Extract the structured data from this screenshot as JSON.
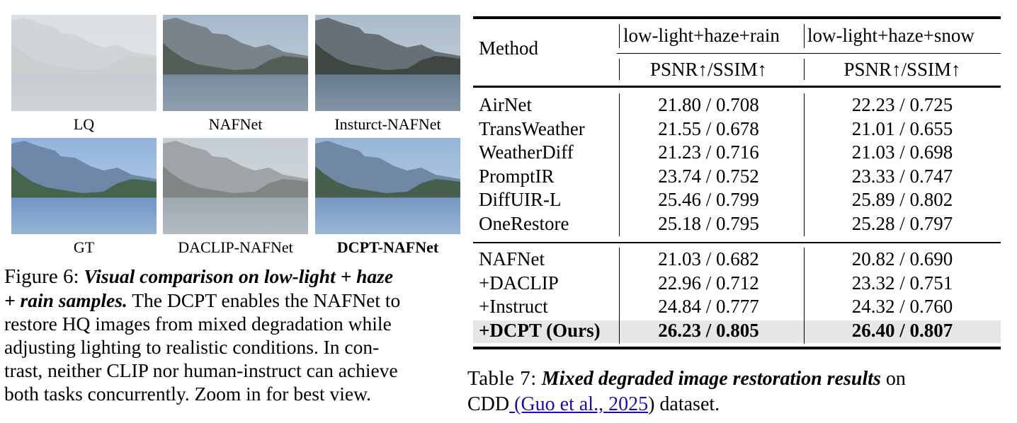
{
  "figure": {
    "thumbnails": [
      {
        "caption": "LQ",
        "variant": "lq"
      },
      {
        "caption": "NAFNet",
        "variant": "naf"
      },
      {
        "caption": "Insturct-NAFNet",
        "variant": "ins"
      },
      {
        "caption": "GT",
        "variant": "gt"
      },
      {
        "caption": "DACLIP-NAFNet",
        "variant": "dac"
      },
      {
        "caption": "DCPT-NAFNet",
        "variant": "dcpt"
      }
    ],
    "caption": {
      "label": "Figure 6:",
      "emph_1": "Visual comparison on low-light + haze",
      "emph_2": "+ rain samples.",
      "rest_2": " The DCPT enables the NAFNet to",
      "line_3": "restore HQ images from mixed degradation while",
      "line_4": "adjusting lighting to realistic conditions.  In con-",
      "line_5": "trast, neither CLIP nor human-instruct can achieve",
      "line_6": "both tasks concurrently. Zoom in for best view."
    }
  },
  "table": {
    "header": {
      "method": "Method",
      "group_1": "low-light+haze+rain",
      "group_2": "low-light+haze+snow",
      "metric_1": "PSNR↑/SSIM↑",
      "metric_2": "PSNR↑/SSIM↑"
    },
    "rows_block_1": [
      {
        "method": "AirNet",
        "v1": "21.80 / 0.708",
        "v2": "22.23 / 0.725"
      },
      {
        "method": "TransWeather",
        "v1": "21.55 / 0.678",
        "v2": "21.01 / 0.655"
      },
      {
        "method": "WeatherDiff",
        "v1": "21.23 / 0.716",
        "v2": "21.03 / 0.698"
      },
      {
        "method": "PromptIR",
        "v1": "23.74 / 0.752",
        "v2": "23.33 / 0.747"
      },
      {
        "method": "DiffUIR-L",
        "v1": "25.46 / 0.799",
        "v2": "25.89 / 0.802"
      },
      {
        "method": "OneRestore",
        "v1": "25.18 / 0.795",
        "v2": "25.28 / 0.797"
      }
    ],
    "rows_block_2": [
      {
        "method": "NAFNet",
        "v1": "21.03 / 0.682",
        "v2": "20.82 / 0.690"
      },
      {
        "method": "+DACLIP",
        "v1": "22.96 / 0.712",
        "v2": "23.32 / 0.751"
      },
      {
        "method": "+Instruct",
        "v1": "24.84 / 0.777",
        "v2": "24.32 / 0.760"
      },
      {
        "method": "+DCPT (Ours)",
        "v1": "26.23 / 0.805",
        "v2": "26.40 / 0.807"
      }
    ],
    "caption": {
      "label": "Table 7:",
      "emph": "Mixed degraded image restoration results",
      "after": " on",
      "line_2_start": "CDD",
      "citation": " (Guo et al., 2025",
      "line_2_end": ") dataset."
    }
  },
  "colors": {
    "highlight_row": "#e6e6e6",
    "citation_link": "#1a0dab"
  }
}
